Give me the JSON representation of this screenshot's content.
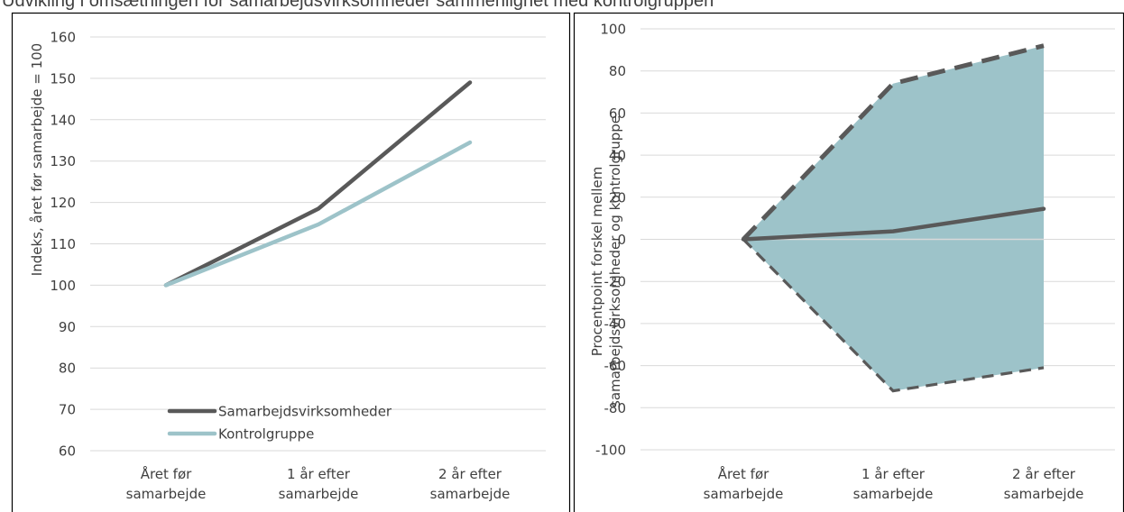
{
  "title": "Udvikling i omsætningen for samarbejdsvirksomheder sammenlignet med kontrolgruppen",
  "chart_data": [
    {
      "type": "line",
      "categories": [
        [
          "Året før",
          "samarbejde"
        ],
        [
          "1 år efter",
          "samarbejde"
        ],
        [
          "2 år efter",
          "samarbejde"
        ]
      ],
      "ylabel": "Indeks, året før samarbejde = 100",
      "xlabel": "",
      "ylim": [
        60,
        160
      ],
      "yticks": [
        60,
        70,
        80,
        90,
        100,
        110,
        120,
        130,
        140,
        150,
        160
      ],
      "grid": true,
      "legend_position": "bottom-left",
      "series": [
        {
          "name": "Samarbejdsvirksomheder",
          "values": [
            100,
            118.5,
            149
          ],
          "color": "#595959"
        },
        {
          "name": "Kontrolgruppe",
          "values": [
            100,
            114.7,
            134.5
          ],
          "color": "#9dc3c9"
        }
      ]
    },
    {
      "type": "area",
      "categories": [
        [
          "Året før",
          "samarbejde"
        ],
        [
          "1 år efter",
          "samarbejde"
        ],
        [
          "2 år efter",
          "samarbejde"
        ]
      ],
      "ylabel": "Procentpoint forskel mellem samarbejdsvirksomheder og kontrolgruppe",
      "ylabel_lines": [
        "Procentpoint forskel mellem",
        "samarbejdsvirksomheder og kontrolgruppe"
      ],
      "xlabel": "",
      "ylim": [
        -100,
        100
      ],
      "yticks": [
        -100,
        -80,
        -60,
        -40,
        -20,
        0,
        20,
        40,
        60,
        80,
        100
      ],
      "grid": true,
      "fill_color": "#9dc3c9",
      "line_color": "#595959",
      "series": [
        {
          "role": "estimate",
          "values": [
            0,
            3.8,
            14.5
          ]
        },
        {
          "role": "upper",
          "values": [
            0,
            74,
            92
          ]
        },
        {
          "role": "lower",
          "values": [
            0,
            -72,
            -61
          ]
        }
      ]
    }
  ]
}
